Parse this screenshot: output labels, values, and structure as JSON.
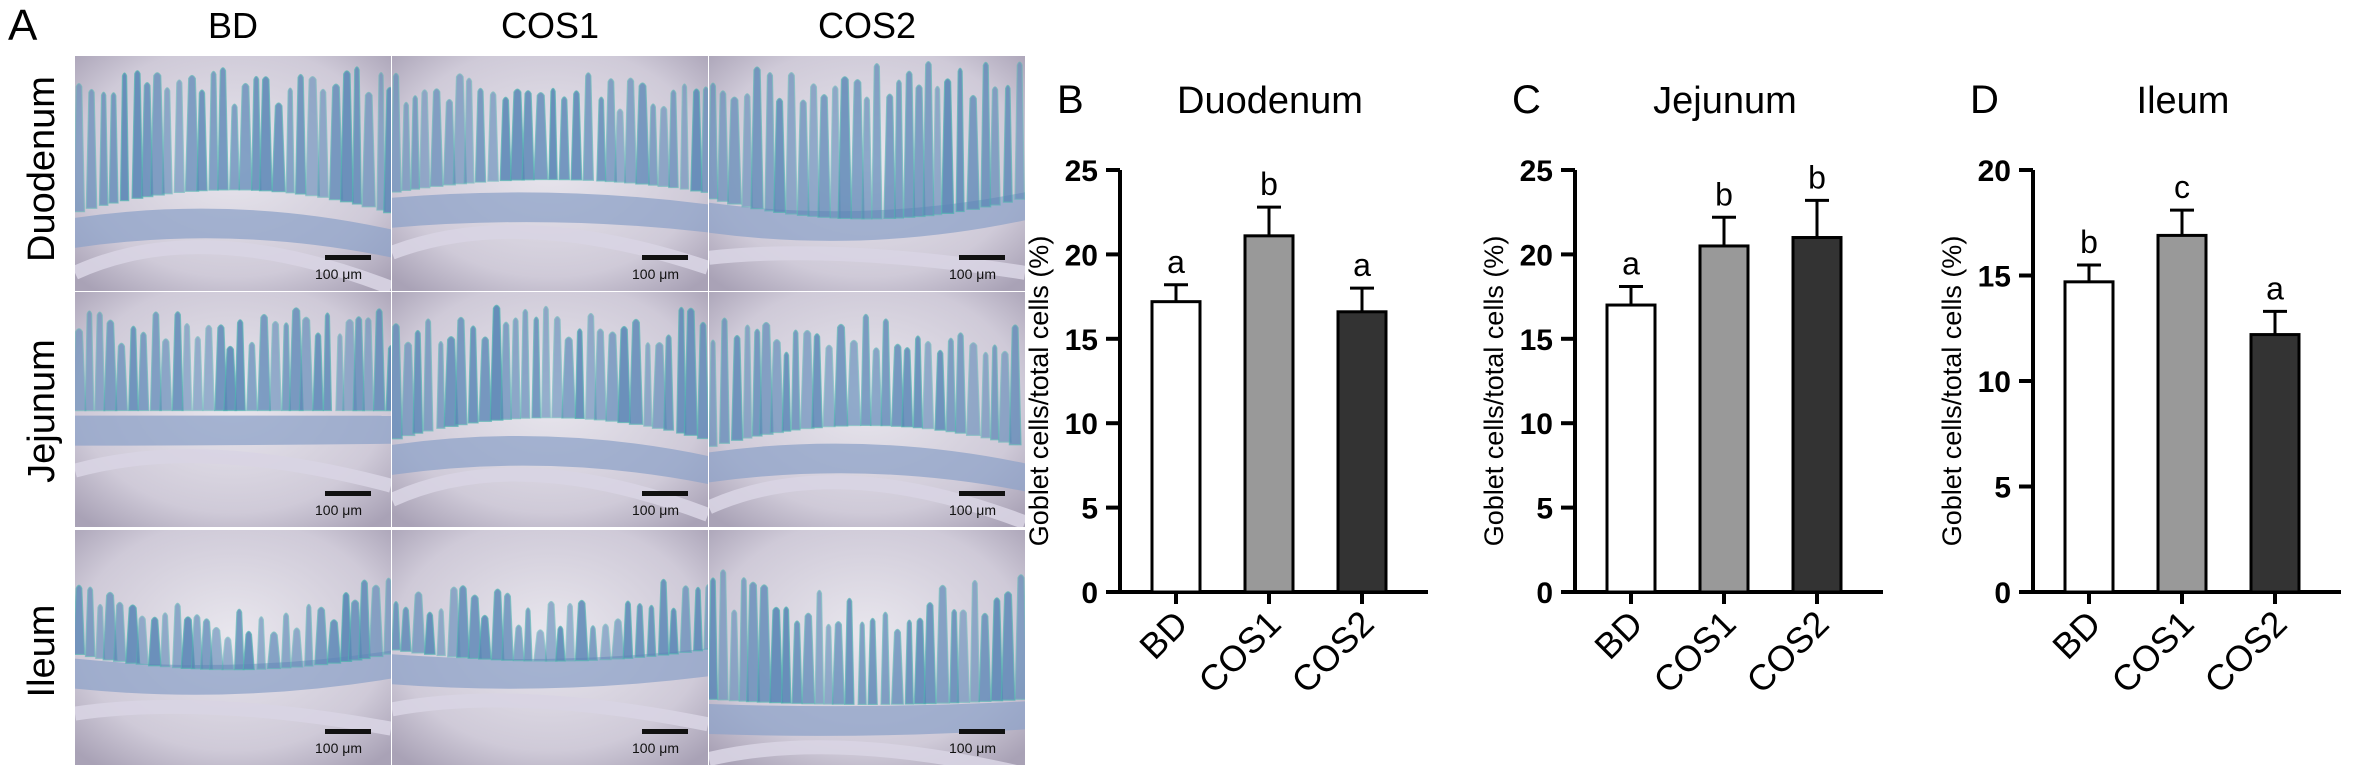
{
  "panel_a": {
    "letter": "A",
    "columns": [
      "BD",
      "COS1",
      "COS2"
    ],
    "rows": [
      "Duodenum",
      "Jejunum",
      "Ileum"
    ],
    "scale_label": "100 μm"
  },
  "colors": {
    "BD": "#ffffff",
    "COS1": "#999999",
    "COS2": "#333333",
    "stain_blue": "#5b86b6",
    "stain_cyan": "#4fb3b0"
  },
  "chart_data": [
    {
      "letter": "B",
      "type": "bar",
      "title": "Duodenum",
      "ylabel": "Goblet cells/total cells (%)",
      "ylim": [
        0,
        25
      ],
      "yticks": [
        0,
        5,
        10,
        15,
        20,
        25
      ],
      "categories": [
        "BD",
        "COS1",
        "COS2"
      ],
      "values": [
        17.2,
        21.1,
        16.6
      ],
      "errors": [
        1.0,
        1.7,
        1.4
      ],
      "letters": [
        "a",
        "b",
        "a"
      ]
    },
    {
      "letter": "C",
      "type": "bar",
      "title": "Jejunum",
      "ylabel": "Goblet cells/total cells (%)",
      "ylim": [
        0,
        25
      ],
      "yticks": [
        0,
        5,
        10,
        15,
        20,
        25
      ],
      "categories": [
        "BD",
        "COS1",
        "COS2"
      ],
      "values": [
        17.0,
        20.5,
        21.0
      ],
      "errors": [
        1.1,
        1.7,
        2.2
      ],
      "letters": [
        "a",
        "b",
        "b"
      ]
    },
    {
      "letter": "D",
      "type": "bar",
      "title": "Ileum",
      "ylabel": "Goblet cells/total cells (%)",
      "ylim": [
        0,
        20
      ],
      "yticks": [
        0,
        5,
        10,
        15,
        20
      ],
      "categories": [
        "BD",
        "COS1",
        "COS2"
      ],
      "values": [
        14.7,
        16.9,
        12.2
      ],
      "errors": [
        0.8,
        1.2,
        1.1
      ],
      "letters": [
        "b",
        "c",
        "a"
      ]
    }
  ]
}
